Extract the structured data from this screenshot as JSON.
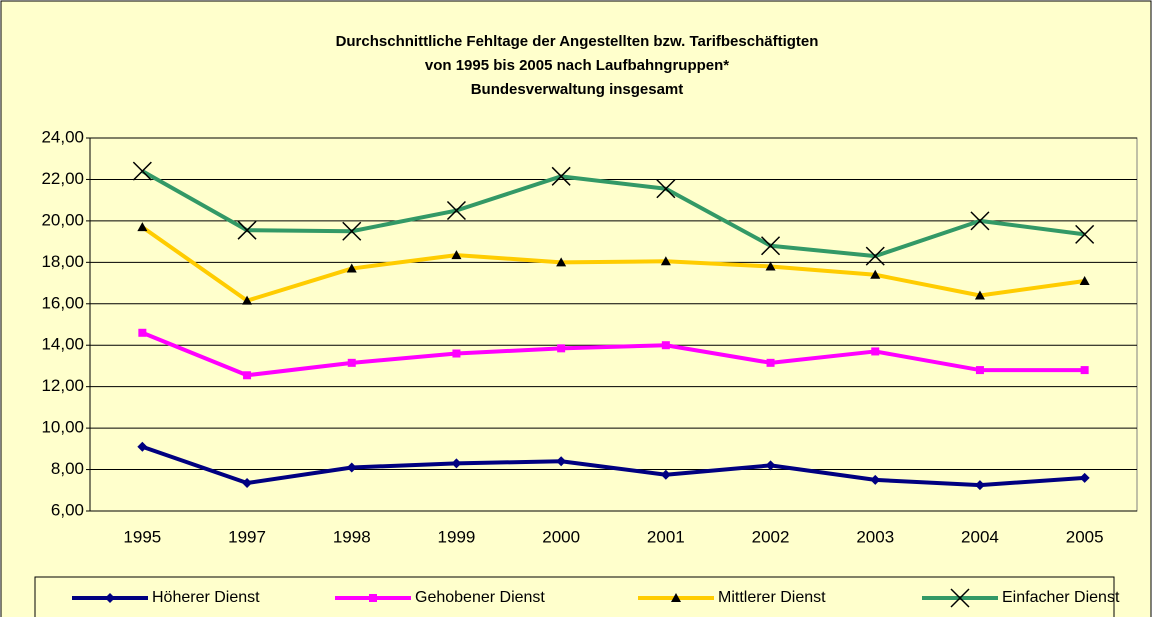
{
  "chart_data": {
    "type": "line",
    "title": [
      "Durchschnittliche Fehltage der Angestellten bzw. Tarifbeschäftigten",
      "von 1995 bis 2005 nach Laufbahngruppen*",
      "Bundesverwaltung insgesamt"
    ],
    "categories": [
      "1995",
      "1997",
      "1998",
      "1999",
      "2000",
      "2001",
      "2002",
      "2003",
      "2004",
      "2005"
    ],
    "series": [
      {
        "name": "Höherer Dienst",
        "color": "#000080",
        "marker": "diamond",
        "values": [
          9.1,
          7.35,
          8.1,
          8.3,
          8.4,
          7.75,
          8.2,
          7.5,
          7.25,
          7.6
        ]
      },
      {
        "name": "Gehobener Dienst",
        "color": "#ff00ff",
        "marker": "square",
        "values": [
          14.6,
          12.55,
          13.15,
          13.6,
          13.85,
          14.0,
          13.15,
          13.7,
          12.8,
          12.8
        ]
      },
      {
        "name": "Mittlerer Dienst",
        "color": "#ffcc00",
        "marker": "triangle",
        "values": [
          19.7,
          16.15,
          17.7,
          18.35,
          18.0,
          18.05,
          17.8,
          17.4,
          16.4,
          17.1
        ]
      },
      {
        "name": "Einfacher Dienst",
        "color": "#339966",
        "marker": "x",
        "values": [
          22.4,
          19.55,
          19.5,
          20.5,
          22.15,
          21.55,
          18.8,
          18.3,
          20.0,
          19.35
        ]
      }
    ],
    "ylim": [
      6,
      24
    ],
    "yticks": [
      {
        "value": 6,
        "label": "6,00"
      },
      {
        "value": 8,
        "label": "8,00"
      },
      {
        "value": 10,
        "label": "10,00"
      },
      {
        "value": 12,
        "label": "12,00"
      },
      {
        "value": 14,
        "label": "14,00"
      },
      {
        "value": 16,
        "label": "16,00"
      },
      {
        "value": 18,
        "label": "18,00"
      },
      {
        "value": 20,
        "label": "20,00"
      },
      {
        "value": 22,
        "label": "22,00"
      },
      {
        "value": 24,
        "label": "24,00"
      }
    ],
    "grid": true,
    "legend": "bottom"
  }
}
